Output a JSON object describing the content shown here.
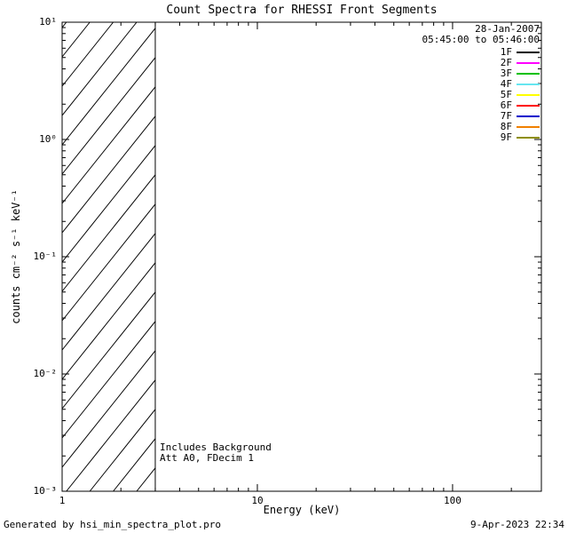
{
  "title": "Count Spectra for RHESSI Front Segments",
  "legend": {
    "date": "28-Jan-2007",
    "time_range": "05:45:00 to 05:46:00",
    "entries": [
      {
        "label": "1F",
        "color": "#000000"
      },
      {
        "label": "2F",
        "color": "#ff00ff"
      },
      {
        "label": "3F",
        "color": "#00c000"
      },
      {
        "label": "4F",
        "color": "#66e6f0"
      },
      {
        "label": "5F",
        "color": "#ffff00"
      },
      {
        "label": "6F",
        "color": "#ff0000"
      },
      {
        "label": "7F",
        "color": "#0000cc"
      },
      {
        "label": "8F",
        "color": "#f08000"
      },
      {
        "label": "9F",
        "color": "#8f8f00"
      }
    ]
  },
  "annotations": {
    "line1": "Includes Background",
    "line2": "Att A0, FDecim 1"
  },
  "footer": {
    "generated_by": "Generated by hsi_min_spectra_plot.pro",
    "timestamp": "9-Apr-2023 22:34"
  },
  "chart_data": {
    "type": "line",
    "title": "Count Spectra for RHESSI Front Segments",
    "xlabel": "Energy (keV)",
    "ylabel": "counts cm⁻² s⁻¹ keV⁻¹",
    "xscale": "log",
    "yscale": "log",
    "xlim": [
      1,
      285
    ],
    "ylim": [
      0.001,
      10
    ],
    "x_ticks": [
      {
        "value": 1,
        "label": "1"
      },
      {
        "value": 10,
        "label": "10"
      },
      {
        "value": 100,
        "label": "100"
      }
    ],
    "y_ticks": [
      {
        "value": 10,
        "label": "10¹"
      },
      {
        "value": 1,
        "label": "10⁰"
      },
      {
        "value": 0.1,
        "label": "10⁻¹"
      },
      {
        "value": 0.01,
        "label": "10⁻²"
      },
      {
        "value": 0.001,
        "label": "10⁻³"
      }
    ],
    "grid": false,
    "legend_position": "top-right-inside",
    "hatched_region": {
      "x_start": 1,
      "x_end": 3,
      "style": "diagonal-hatch"
    },
    "series": [
      {
        "name": "1F",
        "color": "#000000",
        "x": [],
        "y": []
      },
      {
        "name": "2F",
        "color": "#ff00ff",
        "x": [],
        "y": []
      },
      {
        "name": "3F",
        "color": "#00c000",
        "x": [],
        "y": []
      },
      {
        "name": "4F",
        "color": "#66e6f0",
        "x": [],
        "y": []
      },
      {
        "name": "5F",
        "color": "#ffff00",
        "x": [],
        "y": []
      },
      {
        "name": "6F",
        "color": "#ff0000",
        "x": [],
        "y": []
      },
      {
        "name": "7F",
        "color": "#0000cc",
        "x": [],
        "y": []
      },
      {
        "name": "8F",
        "color": "#f08000",
        "x": [],
        "y": []
      },
      {
        "name": "9F",
        "color": "#8f8f00",
        "x": [],
        "y": []
      }
    ],
    "note": "No spectra curves are visible in the plot area; only the axes frame, the diagonally hatched low-energy band (1-3 keV), the legend and annotations are drawn."
  }
}
